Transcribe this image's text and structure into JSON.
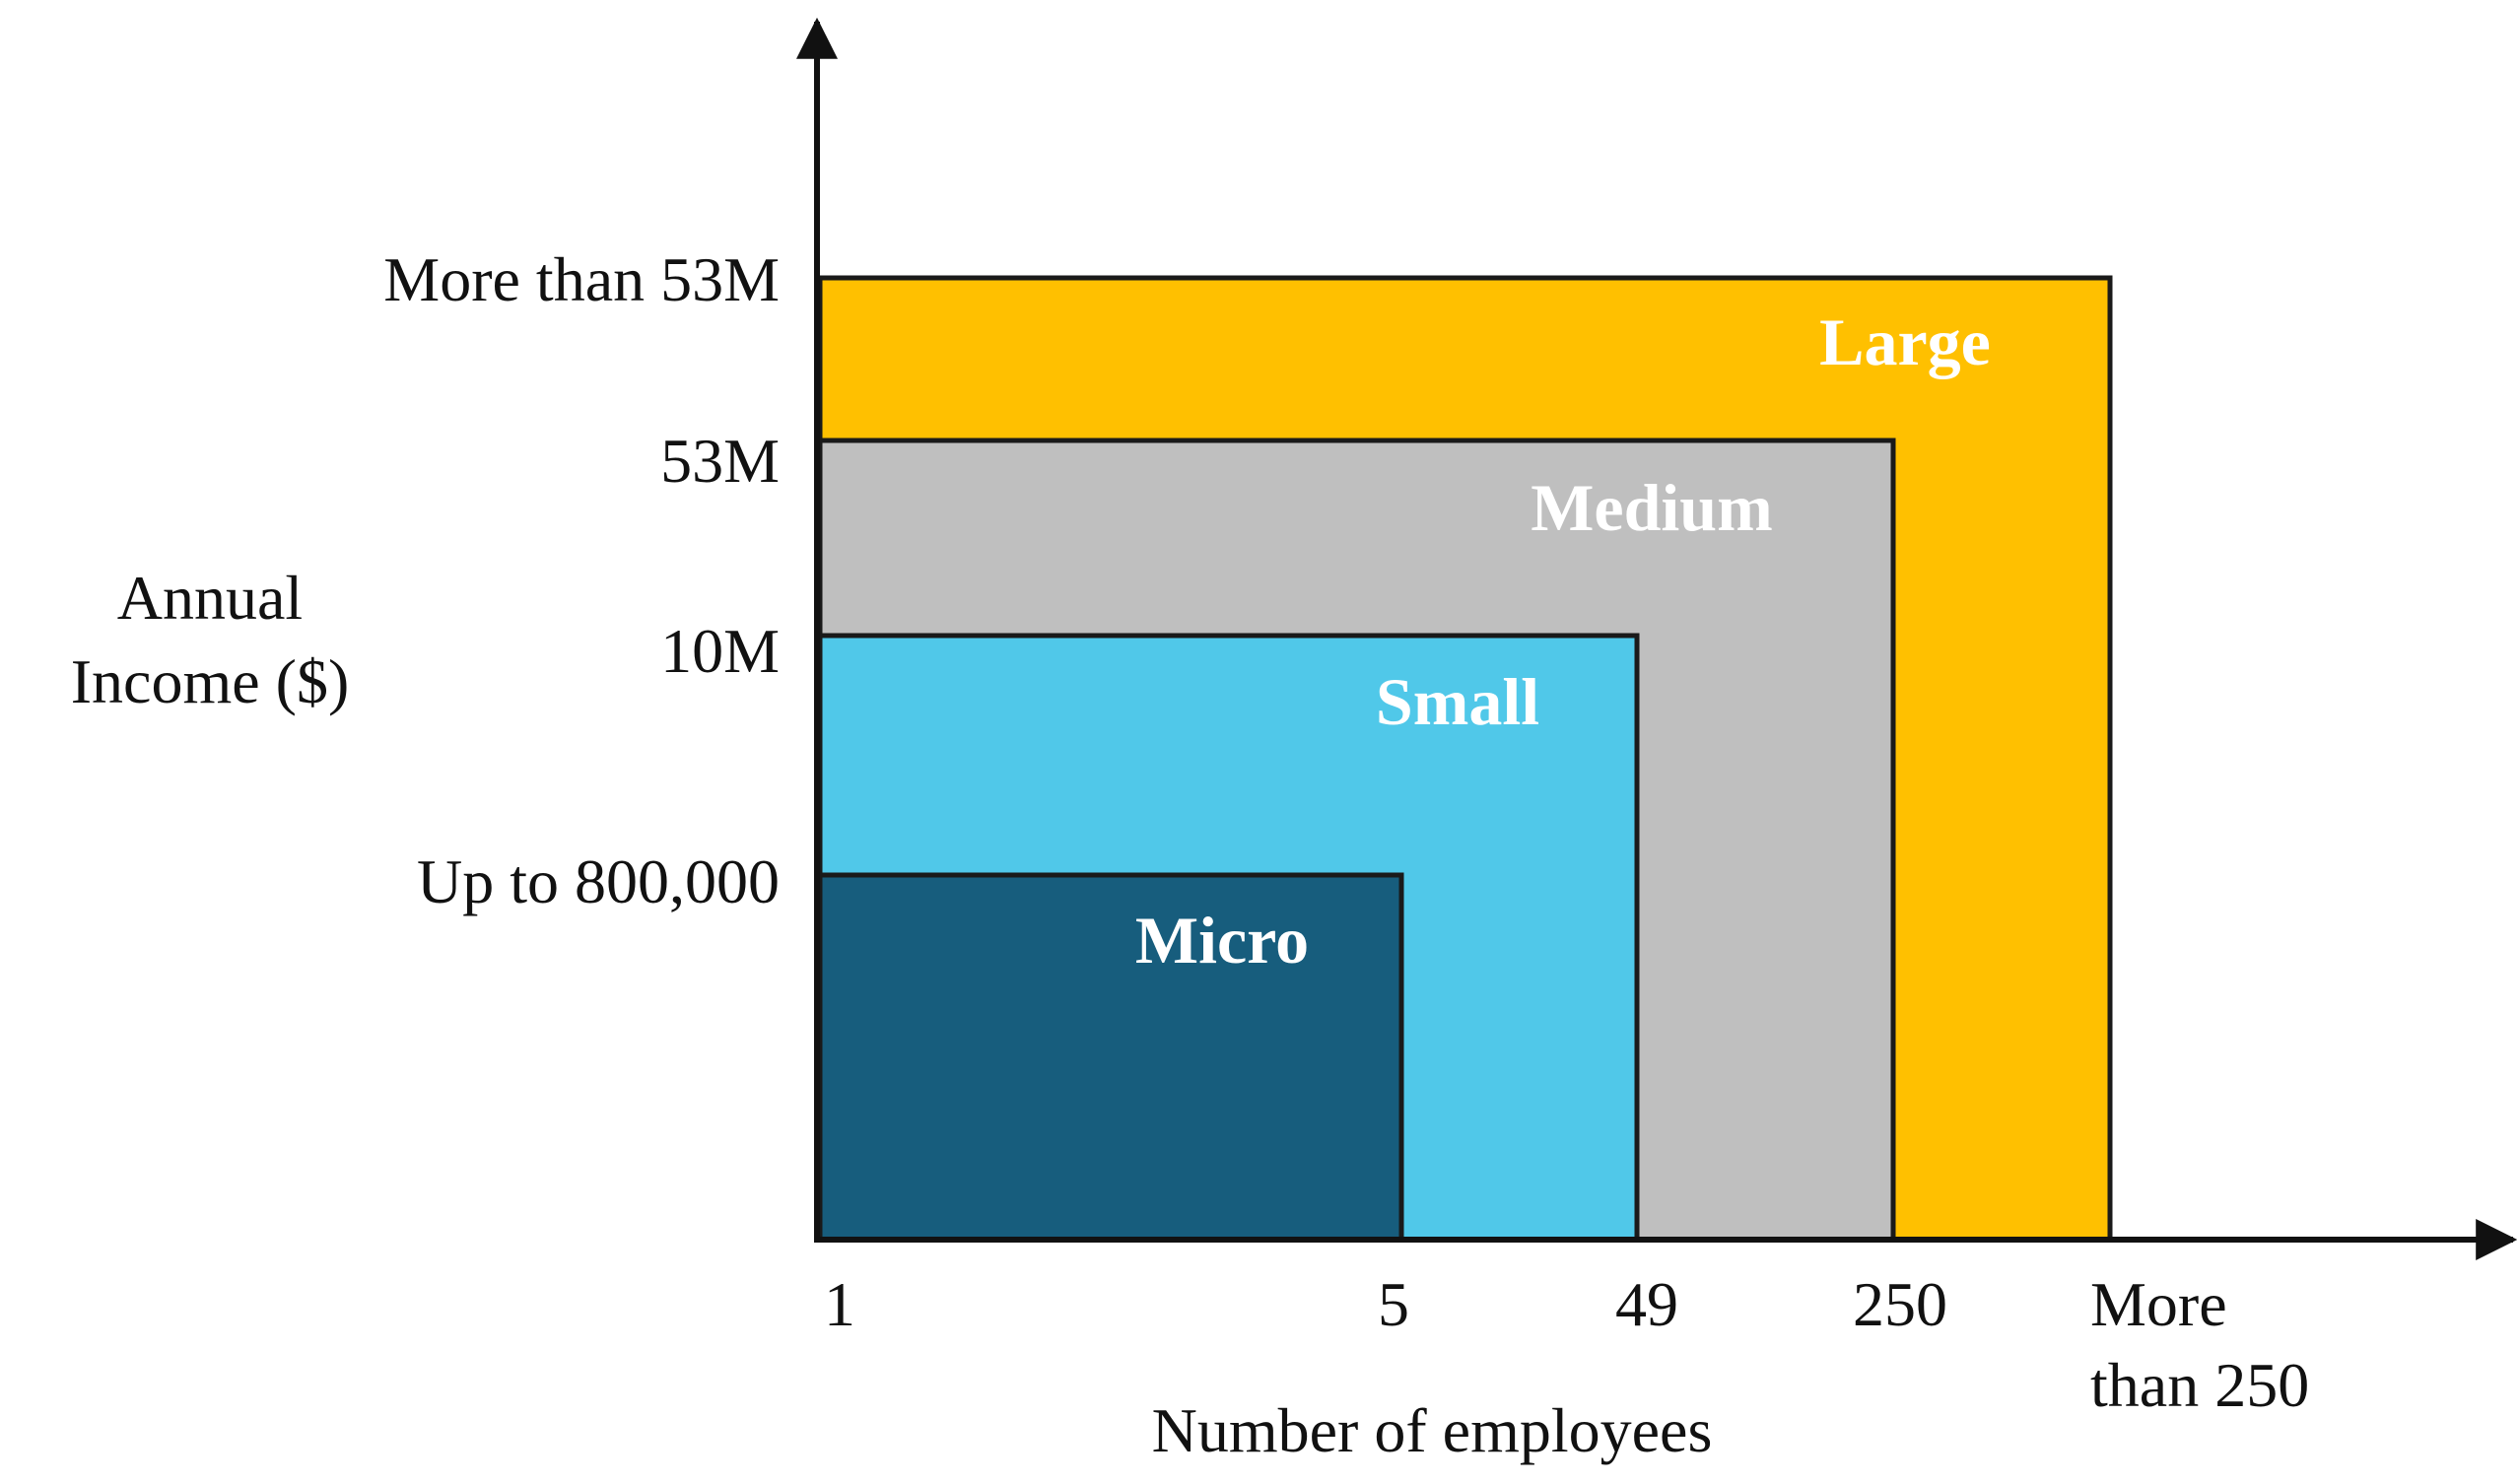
{
  "y_axis": {
    "label_lines": [
      "Annual",
      "Income ($)"
    ],
    "levels": [
      "More than 53M",
      "53M",
      "10M",
      "Up to 800,000"
    ]
  },
  "x_axis": {
    "label": "Number of employees",
    "levels": [
      "1",
      "5",
      "49",
      "250"
    ],
    "last_level_lines": [
      "More",
      "than 250"
    ]
  },
  "regions": [
    {
      "label": "Large",
      "color": "#FFC000"
    },
    {
      "label": "Medium",
      "color": "#BFBFBF"
    },
    {
      "label": "Small",
      "color": "#50C8E9"
    },
    {
      "label": "Micro",
      "color": "#175D7D"
    }
  ]
}
